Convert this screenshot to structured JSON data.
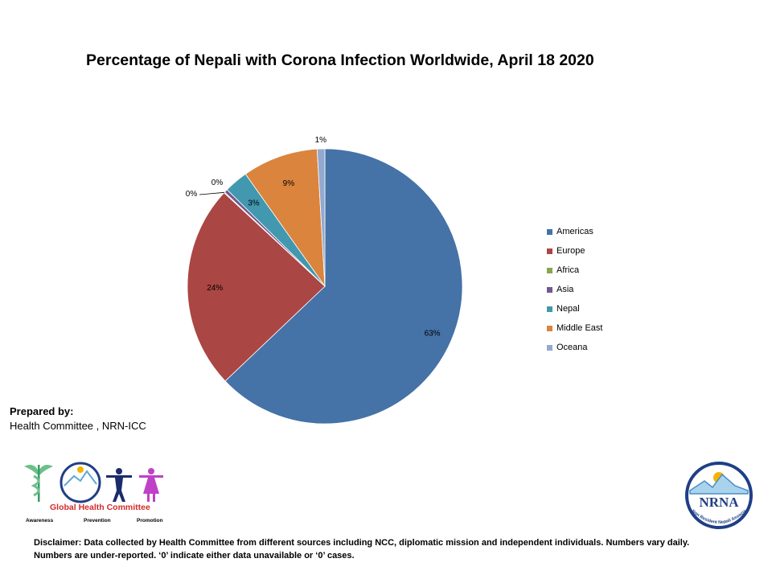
{
  "chart_data": {
    "type": "pie",
    "title": "Percentage of Nepali with Corona Infection Worldwide, April 18 2020",
    "start": "12 o'clock, clockwise",
    "slices": [
      {
        "name": "Americas",
        "value": 62.9,
        "label": "63%",
        "color": "#4572A7"
      },
      {
        "name": "Europe",
        "value": 24.0,
        "label": "24%",
        "color": "#AA4643"
      },
      {
        "name": "Africa",
        "value": 0.1,
        "label": "0%",
        "color": "#89A54E"
      },
      {
        "name": "Asia",
        "value": 0.4,
        "label": "0%",
        "color": "#71588F"
      },
      {
        "name": "Nepal",
        "value": 2.8,
        "label": "3%",
        "color": "#4198AF"
      },
      {
        "name": "Middle East",
        "value": 8.9,
        "label": "9%",
        "color": "#DB843D"
      },
      {
        "name": "Oceana",
        "value": 0.9,
        "label": "1%",
        "color": "#93A9CF"
      }
    ],
    "legend_position": "right"
  },
  "prepared": {
    "heading": "Prepared by:",
    "by": "Health Committee , NRN-ICC"
  },
  "logos": {
    "ghc_title": "Global Health Committee",
    "ghc_tags": [
      "Awareness",
      "Prevention",
      "Promotion"
    ],
    "nrna": "NRNA",
    "nrna_ring": "Non Resident Nepali Association"
  },
  "disclaimer": "Disclaimer:  Data collected by Health Committee from different sources including NCC, diplomatic mission and independent individuals.  Numbers vary daily.  Numbers are under-reported. ‘0’ indicate either data unavailable  or ‘0’ cases."
}
